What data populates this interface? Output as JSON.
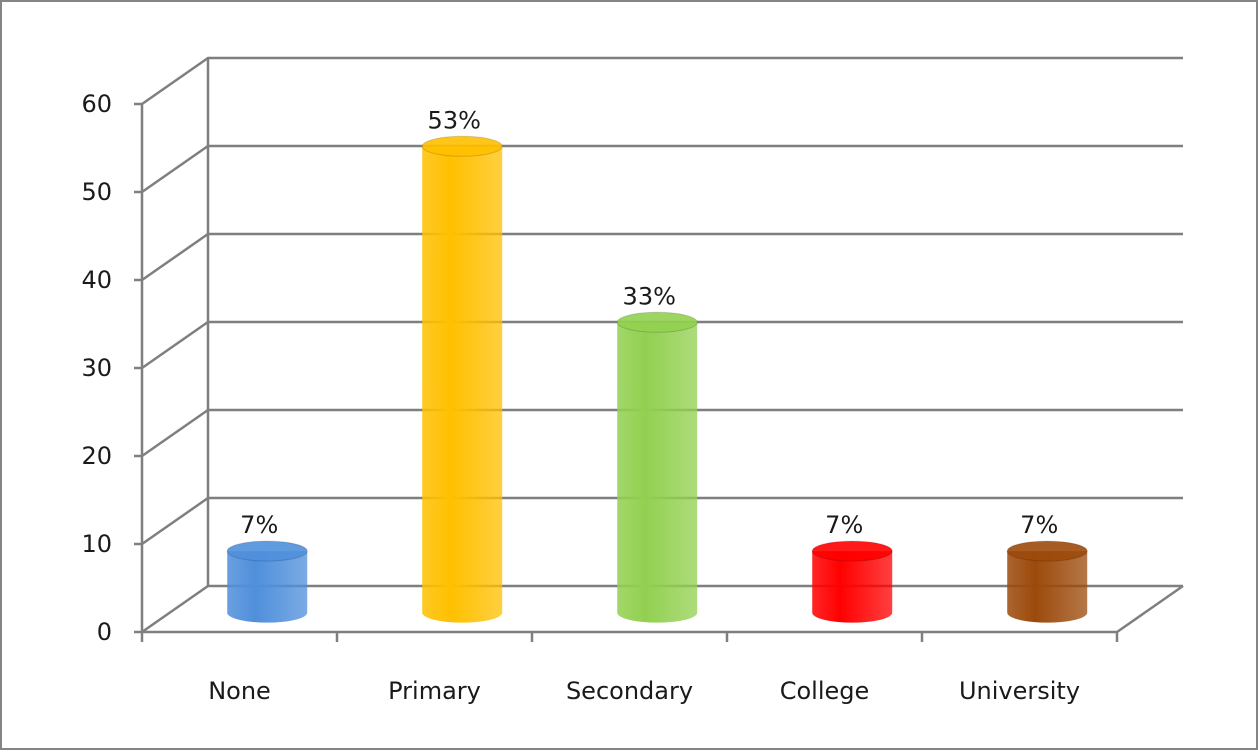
{
  "chart_data": {
    "type": "bar",
    "style": "3d-cylinder",
    "categories": [
      "None",
      "Primary",
      "Secondary",
      "College",
      "University"
    ],
    "values": [
      7,
      53,
      33,
      7,
      7
    ],
    "data_labels": [
      "7%",
      "53%",
      "33%",
      "7%",
      "7%"
    ],
    "colors": [
      "#4f8fdb",
      "#ffc000",
      "#92d050",
      "#ff0000",
      "#9c4a0b"
    ],
    "ylim": [
      0,
      60
    ],
    "yticks": [
      0,
      10,
      20,
      30,
      40,
      50,
      60
    ],
    "ytick_labels": [
      "0",
      "10",
      "20",
      "30",
      "40",
      "50",
      "60"
    ],
    "grid": true,
    "legend": "none",
    "title": "",
    "xlabel": "",
    "ylabel": ""
  }
}
